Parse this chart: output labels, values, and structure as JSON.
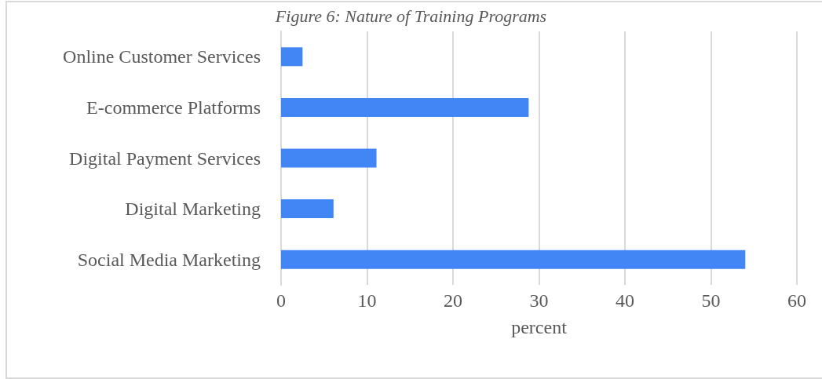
{
  "chart_data": {
    "type": "bar",
    "orientation": "horizontal",
    "title": "Figure 6: Nature of Training Programs",
    "xlabel": "percent",
    "categories": [
      "Online Customer Services",
      "E-commerce Platforms",
      "Digital Payment Services",
      "Digital Marketing",
      "Social Media Marketing"
    ],
    "values": [
      2.5,
      28.8,
      11.1,
      6.1,
      54
    ],
    "color": "#4285f4",
    "xlim": [
      0,
      60
    ],
    "xticks": [
      0,
      10,
      20,
      30,
      40,
      50,
      60
    ],
    "grid": "x"
  }
}
